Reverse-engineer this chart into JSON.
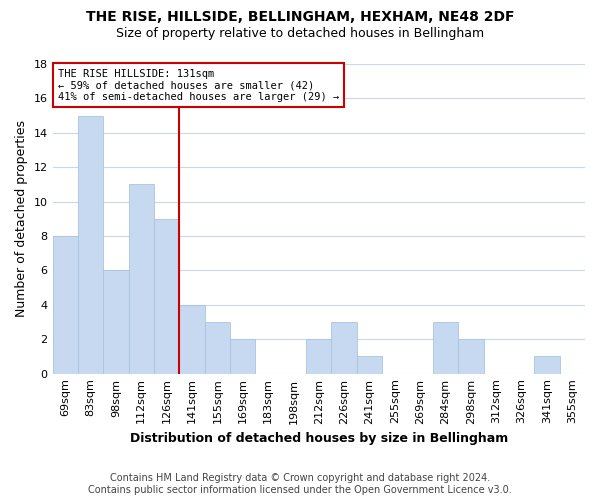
{
  "title": "THE RISE, HILLSIDE, BELLINGHAM, HEXHAM, NE48 2DF",
  "subtitle": "Size of property relative to detached houses in Bellingham",
  "xlabel": "Distribution of detached houses by size in Bellingham",
  "ylabel": "Number of detached properties",
  "footer_line1": "Contains HM Land Registry data © Crown copyright and database right 2024.",
  "footer_line2": "Contains public sector information licensed under the Open Government Licence v3.0.",
  "categories": [
    "69sqm",
    "83sqm",
    "98sqm",
    "112sqm",
    "126sqm",
    "141sqm",
    "155sqm",
    "169sqm",
    "183sqm",
    "198sqm",
    "212sqm",
    "226sqm",
    "241sqm",
    "255sqm",
    "269sqm",
    "284sqm",
    "298sqm",
    "312sqm",
    "326sqm",
    "341sqm",
    "355sqm"
  ],
  "values": [
    8,
    15,
    6,
    11,
    9,
    4,
    3,
    2,
    0,
    0,
    2,
    3,
    1,
    0,
    0,
    3,
    2,
    0,
    0,
    1,
    0
  ],
  "bar_color": "#c6d9f0",
  "bar_edge_color": "#aac4e0",
  "property_line_label": "THE RISE HILLSIDE: 131sqm",
  "annotation_line1": "← 59% of detached houses are smaller (42)",
  "annotation_line2": "41% of semi-detached houses are larger (29) →",
  "ylim": [
    0,
    18
  ],
  "yticks": [
    0,
    2,
    4,
    6,
    8,
    10,
    12,
    14,
    16,
    18
  ],
  "grid_color": "#c8d8e8",
  "background_color": "#ffffff",
  "title_fontsize": 10,
  "subtitle_fontsize": 9,
  "axis_label_fontsize": 9,
  "tick_fontsize": 8,
  "footer_fontsize": 7
}
